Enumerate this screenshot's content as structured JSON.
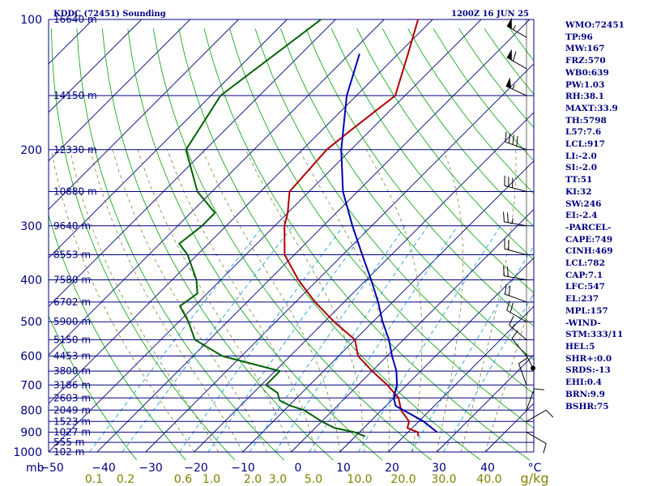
{
  "header": {
    "station": "KDDC (72451) Sounding",
    "time": "1200Z 16 JUN 25"
  },
  "chart_data": {
    "type": "skew-t log-p",
    "pressure_range": [
      1000,
      100
    ],
    "temperature_range": [
      -50,
      50
    ],
    "pressure_levels": [
      {
        "p": 100,
        "label": "100",
        "h": "16640 m"
      },
      {
        "p": 150,
        "label": "",
        "h": "14150 m"
      },
      {
        "p": 200,
        "label": "200",
        "h": "12330 m"
      },
      {
        "p": 250,
        "label": "",
        "h": "10880 m"
      },
      {
        "p": 300,
        "label": "300",
        "h": "9640 m"
      },
      {
        "p": 350,
        "label": "",
        "h": "8553 m"
      },
      {
        "p": 400,
        "label": "400",
        "h": "7580 m"
      },
      {
        "p": 450,
        "label": "",
        "h": "6702 m"
      },
      {
        "p": 500,
        "label": "500",
        "h": "5900 m"
      },
      {
        "p": 550,
        "label": "",
        "h": "5150 m"
      },
      {
        "p": 600,
        "label": "600",
        "h": "4453 m"
      },
      {
        "p": 650,
        "label": "",
        "h": "3800 m"
      },
      {
        "p": 700,
        "label": "700",
        "h": "3186 m"
      },
      {
        "p": 750,
        "label": "",
        "h": "2603 m"
      },
      {
        "p": 800,
        "label": "800",
        "h": "2049 m"
      },
      {
        "p": 850,
        "label": "",
        "h": "1523 m"
      },
      {
        "p": 900,
        "label": "900",
        "h": "1027 m"
      },
      {
        "p": 950,
        "label": "",
        "h": "555 m"
      },
      {
        "p": 1000,
        "label": "1000",
        "h": "102 m"
      }
    ],
    "x_ticks": [
      "−50",
      "−40",
      "−30",
      "−20",
      "−10",
      "0",
      "10",
      "20",
      "30",
      "40"
    ],
    "x_unit": "°C",
    "x_prefix": "mb",
    "mixing_ratio_labels": [
      "0.1",
      "0.2",
      "0.6",
      "1.0",
      "2.0",
      "3.0",
      "5.0",
      "10.0",
      "20.0",
      "30.0",
      "40.0"
    ],
    "mixing_ratio_unit": "g/kg",
    "series": [
      {
        "key": "temperature",
        "color": "#b00000",
        "points": [
          [
            100,
            -63
          ],
          [
            120,
            -58
          ],
          [
            150,
            -52
          ],
          [
            180,
            -54
          ],
          [
            200,
            -55
          ],
          [
            250,
            -54
          ],
          [
            280,
            -50
          ],
          [
            300,
            -48
          ],
          [
            350,
            -42
          ],
          [
            400,
            -34
          ],
          [
            450,
            -26
          ],
          [
            500,
            -18
          ],
          [
            550,
            -10
          ],
          [
            600,
            -6
          ],
          [
            650,
            0
          ],
          [
            700,
            6
          ],
          [
            750,
            11
          ],
          [
            800,
            14
          ],
          [
            850,
            18
          ],
          [
            880,
            19
          ],
          [
            900,
            22
          ],
          [
            920,
            23
          ]
        ]
      },
      {
        "key": "dewpoint",
        "color": "#006000",
        "points": [
          [
            100,
            -83
          ],
          [
            150,
            -88
          ],
          [
            200,
            -84
          ],
          [
            250,
            -73
          ],
          [
            280,
            -65
          ],
          [
            300,
            -65
          ],
          [
            330,
            -66
          ],
          [
            350,
            -62
          ],
          [
            400,
            -55
          ],
          [
            430,
            -52
          ],
          [
            460,
            -53
          ],
          [
            500,
            -48
          ],
          [
            550,
            -43
          ],
          [
            600,
            -34
          ],
          [
            650,
            -19
          ],
          [
            700,
            -19
          ],
          [
            730,
            -15
          ],
          [
            760,
            -13
          ],
          [
            780,
            -10
          ],
          [
            800,
            -6
          ],
          [
            850,
            0
          ],
          [
            880,
            4
          ],
          [
            900,
            9
          ],
          [
            920,
            12
          ]
        ]
      },
      {
        "key": "parcel",
        "color": "#0000b0",
        "points": [
          [
            120,
            -68
          ],
          [
            150,
            -62
          ],
          [
            200,
            -52
          ],
          [
            250,
            -43
          ],
          [
            300,
            -34
          ],
          [
            350,
            -26
          ],
          [
            400,
            -19
          ],
          [
            450,
            -13
          ],
          [
            500,
            -8
          ],
          [
            550,
            -3
          ],
          [
            600,
            1
          ],
          [
            650,
            5
          ],
          [
            700,
            8
          ],
          [
            750,
            10
          ],
          [
            782,
            12
          ],
          [
            850,
            21
          ],
          [
            900,
            26
          ]
        ]
      }
    ],
    "wind_barbs": [
      {
        "p": 110,
        "dir": 300,
        "kt": 55
      },
      {
        "p": 130,
        "dir": 300,
        "kt": 60
      },
      {
        "p": 150,
        "dir": 295,
        "kt": 55
      },
      {
        "p": 200,
        "dir": 290,
        "kt": 40
      },
      {
        "p": 250,
        "dir": 285,
        "kt": 30
      },
      {
        "p": 300,
        "dir": 280,
        "kt": 25
      },
      {
        "p": 350,
        "dir": 285,
        "kt": 20
      },
      {
        "p": 400,
        "dir": 280,
        "kt": 20
      },
      {
        "p": 450,
        "dir": 290,
        "kt": 20
      },
      {
        "p": 500,
        "dir": 300,
        "kt": 20
      },
      {
        "p": 550,
        "dir": 310,
        "kt": 15
      },
      {
        "p": 600,
        "dir": 320,
        "kt": 10
      },
      {
        "p": 700,
        "dir": 340,
        "kt": 10
      },
      {
        "p": 800,
        "dir": 20,
        "kt": 10
      },
      {
        "p": 850,
        "dir": 60,
        "kt": 10
      },
      {
        "p": 900,
        "dir": 120,
        "kt": 10
      }
    ],
    "storm_motion": {
      "dir": 333,
      "kt": 11
    }
  },
  "indices": [
    "WMO:72451",
    "TP:96",
    "MW:167",
    "FRZ:570",
    "WB0:639",
    "PW:1.03",
    "RH:38.1",
    "MAXT:33.9",
    "TH:5798",
    "L57:7.6",
    "LCL:917",
    "LI:-2.0",
    "SI:-2.0",
    "TT:51",
    "KI:32",
    "SW:246",
    "EI:-2.4",
    "-PARCEL-",
    "CAPE:749",
    "CINH:469",
    "LCL:782",
    "CAP:7.1",
    "LFC:547",
    "EL:237",
    "MPL:157",
    "-WIND-",
    "STM:333/11",
    "HEL:5",
    "SHR+:0.0",
    "SRDS:-13",
    "EHI:0.4",
    "BRN:9.9",
    "BSHR:75"
  ]
}
